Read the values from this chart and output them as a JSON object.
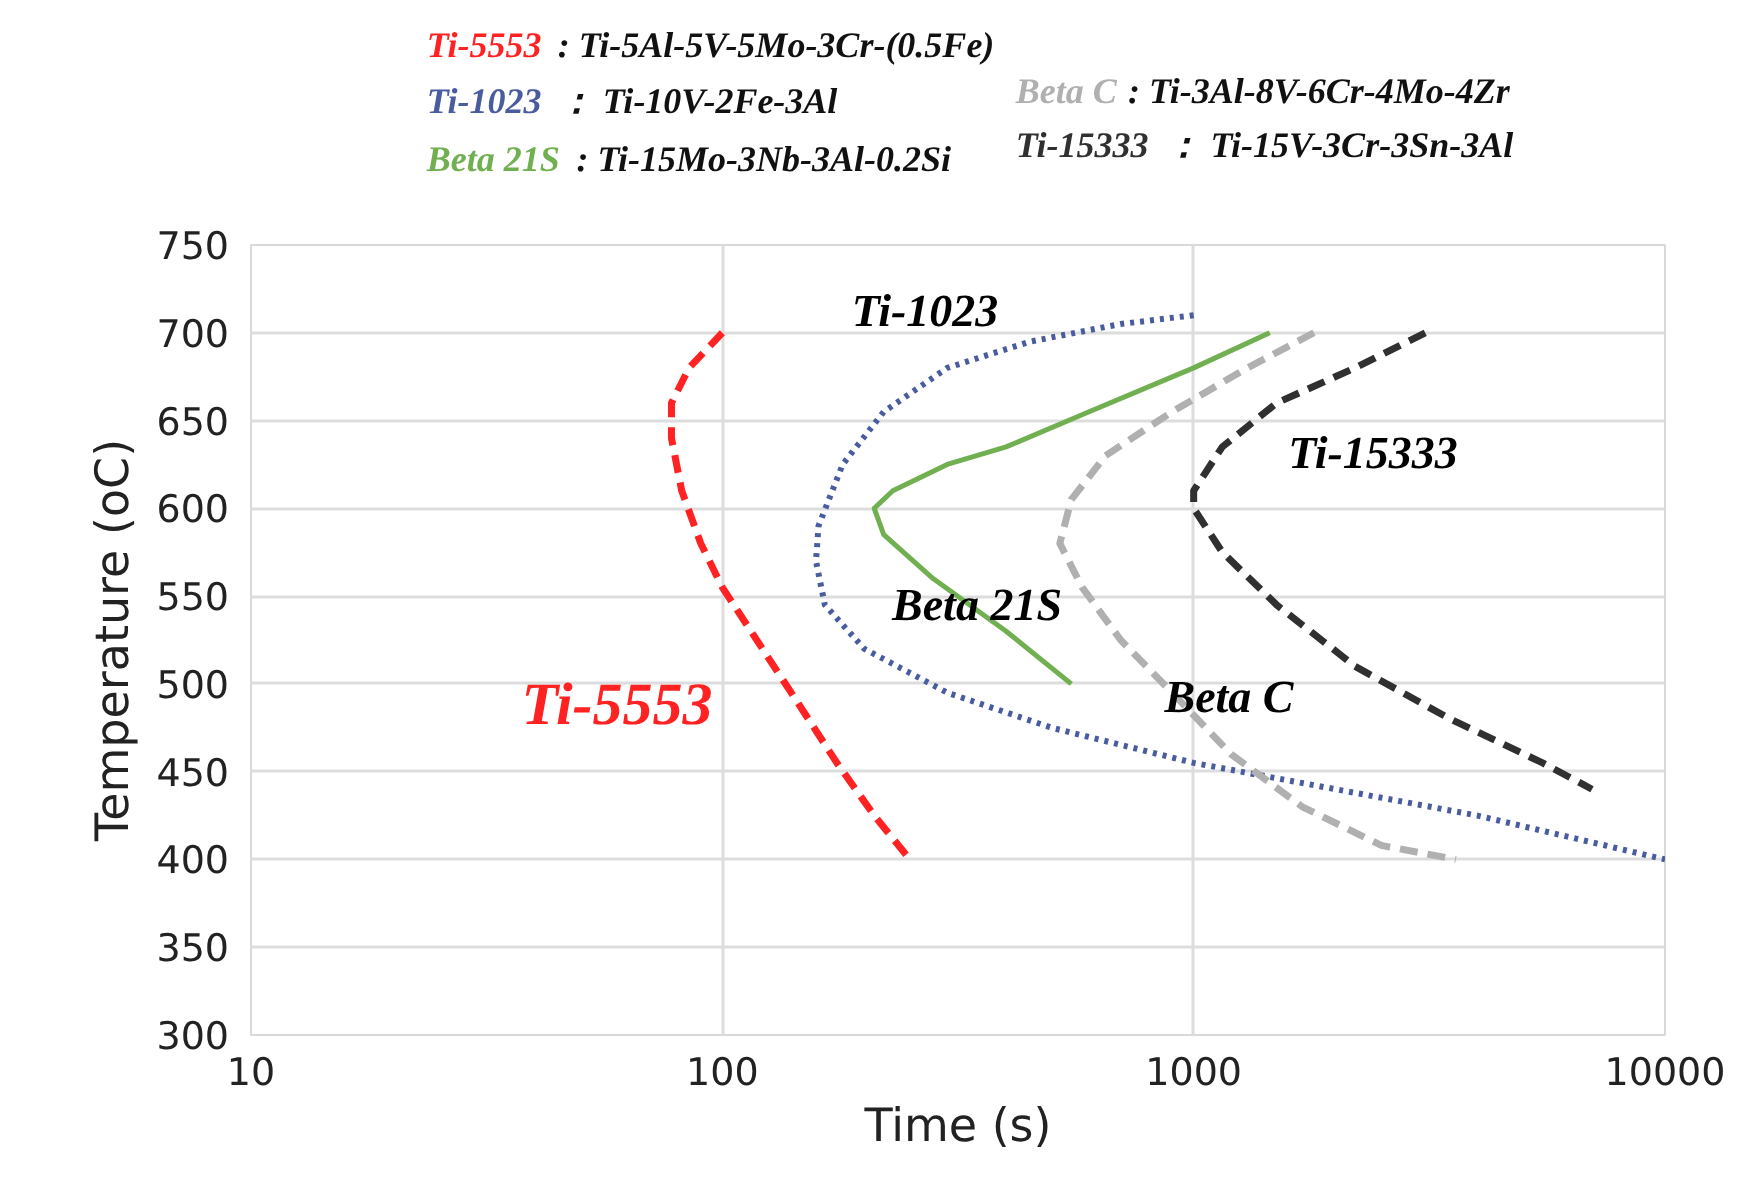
{
  "chart_data": {
    "type": "line",
    "xlabel": "Time (s)",
    "ylabel": "Temperature (oC)",
    "log": "x",
    "grid": true,
    "legend": "top",
    "xlim": [
      10,
      10000
    ],
    "ylim": [
      300,
      750
    ],
    "xticks": [
      10,
      100,
      1000,
      10000
    ],
    "yticks": [
      300,
      350,
      400,
      450,
      500,
      550,
      600,
      650,
      700,
      750
    ],
    "series": [
      {
        "name": "Ti-5553",
        "color": "#ff2222",
        "line_style": "dashed",
        "x": [
          100,
          85,
          78,
          78,
          82,
          90,
          100,
          115,
          140,
          175,
          210,
          250
        ],
        "values": [
          700,
          680,
          660,
          640,
          610,
          580,
          555,
          530,
          495,
          455,
          425,
          400
        ]
      },
      {
        "name": "Ti-1023",
        "color": "#4a5ca0",
        "line_style": "dotted",
        "x": [
          1000,
          700,
          450,
          300,
          220,
          180,
          160,
          158,
          165,
          200,
          300,
          500,
          1000,
          2000,
          4000,
          10000
        ],
        "values": [
          710,
          705,
          695,
          680,
          655,
          625,
          590,
          570,
          545,
          520,
          495,
          475,
          455,
          440,
          425,
          400
        ]
      },
      {
        "name": "Beta 21S",
        "color": "#70b050",
        "line_style": "solid",
        "x": [
          1450,
          1000,
          600,
          400,
          300,
          230,
          210,
          220,
          280,
          400,
          550
        ],
        "values": [
          700,
          680,
          655,
          635,
          625,
          610,
          600,
          585,
          560,
          530,
          500
        ]
      },
      {
        "name": "Beta C",
        "color": "#b0b0b0",
        "line_style": "dashed",
        "x": [
          1800,
          1300,
          900,
          650,
          550,
          520,
          580,
          700,
          900,
          1200,
          1700,
          2500,
          3600
        ],
        "values": [
          700,
          680,
          655,
          630,
          605,
          580,
          555,
          525,
          495,
          460,
          430,
          408,
          400
        ]
      },
      {
        "name": "Ti-15333",
        "color": "#303030",
        "line_style": "dashed",
        "x": [
          3100,
          2200,
          1500,
          1150,
          1000,
          1000,
          1150,
          1500,
          2200,
          3500,
          5500,
          7000
        ],
        "values": [
          700,
          680,
          660,
          635,
          610,
          600,
          575,
          545,
          510,
          480,
          455,
          440
        ]
      }
    ],
    "annotations": [
      ": Ti-5Al-5V-5Mo-3Cr-(0.5Fe)",
      "： Ti-10V-2Fe-3Al",
      ": Ti-15Mo-3Nb-3Al-0.2Si",
      ": Ti-3Al-8V-6Cr-4Mo-4Zr",
      "： Ti-15V-3Cr-3Sn-3Al",
      "Ti-5553",
      "Ti-1023",
      "Beta 21S",
      "Beta C",
      "Ti-15333"
    ]
  }
}
